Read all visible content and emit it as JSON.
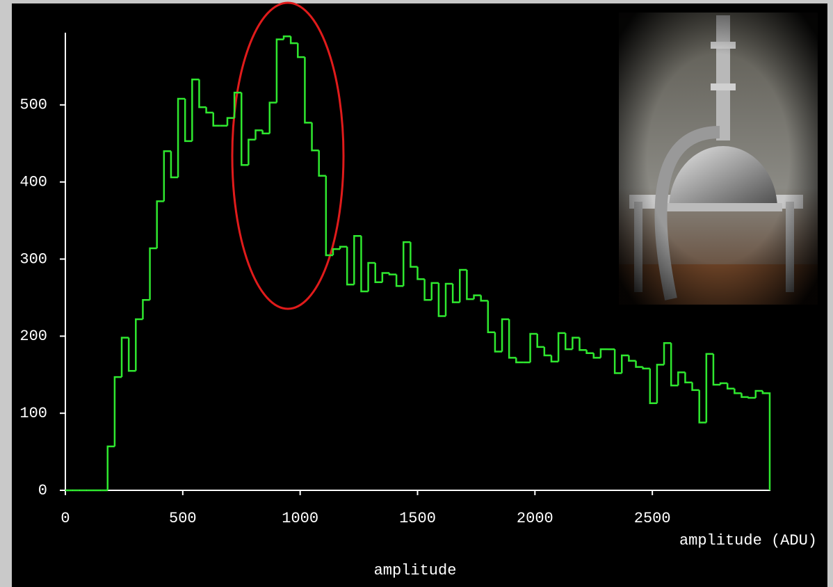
{
  "chart_data": {
    "type": "histogram",
    "xlabel": "amplitude (ADU)",
    "axis_title": "amplitude",
    "color": "#2fe82f",
    "bins": [
      0,
      30,
      60,
      90,
      120,
      150,
      180,
      210,
      240,
      270,
      300,
      330,
      360,
      390,
      420,
      450,
      480,
      510,
      540,
      570,
      600,
      630,
      660,
      690,
      720,
      750,
      780,
      810,
      840,
      870,
      900,
      930,
      960,
      990,
      1020,
      1050,
      1080,
      1110,
      1140,
      1170,
      1200,
      1230,
      1260,
      1290,
      1320,
      1350,
      1380,
      1410,
      1440,
      1470,
      1500,
      1530,
      1560,
      1590,
      1620,
      1650,
      1680,
      1710,
      1740,
      1770,
      1800,
      1830,
      1860,
      1890,
      1920,
      1950,
      1980,
      2010,
      2040,
      2070,
      2100,
      2130,
      2160,
      2190,
      2220,
      2250,
      2280,
      2310,
      2340,
      2370,
      2400,
      2430,
      2460,
      2490,
      2520,
      2550,
      2580,
      2610,
      2640,
      2670,
      2700,
      2730,
      2760,
      2790,
      2820,
      2850,
      2880,
      2910,
      2940,
      2970,
      3000
    ],
    "values": [
      0,
      0,
      0,
      0,
      0,
      0,
      57,
      147,
      198,
      155,
      222,
      247,
      314,
      375,
      440,
      406,
      508,
      453,
      533,
      497,
      490,
      473,
      473,
      483,
      516,
      422,
      455,
      467,
      463,
      503,
      585,
      589,
      580,
      562,
      477,
      441,
      408,
      305,
      313,
      316,
      267,
      330,
      258,
      295,
      270,
      282,
      280,
      265,
      322,
      290,
      274,
      247,
      269,
      226,
      268,
      244,
      286,
      248,
      253,
      246,
      205,
      180,
      222,
      172,
      166,
      166,
      203,
      186,
      175,
      167,
      204,
      183,
      198,
      182,
      178,
      172,
      183,
      183,
      152,
      175,
      168,
      160,
      158,
      113,
      163,
      191,
      136,
      153,
      140,
      130,
      88,
      177,
      137,
      139,
      132,
      126,
      121,
      120,
      129,
      126
    ],
    "xlim": [
      0,
      3000
    ],
    "xticks": [
      0,
      500,
      1000,
      1500,
      2000,
      2500
    ],
    "ylim": [
      0,
      600
    ],
    "yticks": [
      0,
      100,
      200,
      300,
      400,
      500
    ],
    "grid": false
  }
}
